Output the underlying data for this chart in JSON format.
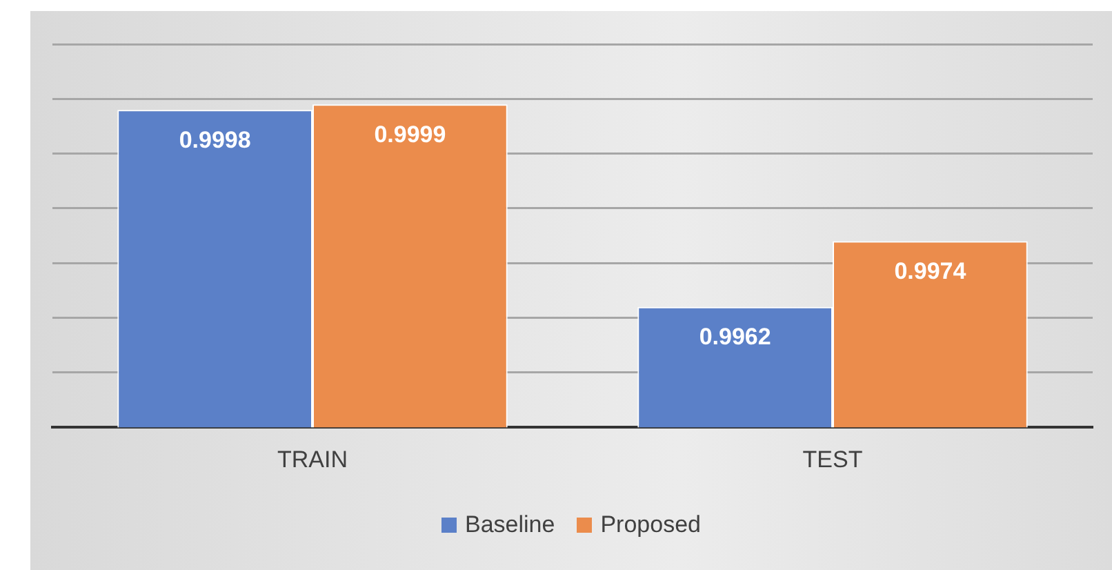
{
  "chart_data": {
    "type": "bar",
    "categories": [
      "TRAIN",
      "TEST"
    ],
    "series": [
      {
        "name": "Baseline",
        "color": "#5b80c8",
        "values": [
          0.9998,
          0.9962
        ]
      },
      {
        "name": "Proposed",
        "color": "#eb8c4c",
        "values": [
          0.9999,
          0.9974
        ]
      }
    ],
    "ylim": [
      0.994,
      1.001
    ],
    "yticks": [
      {
        "value": 0.994,
        "label": null
      },
      {
        "value": 0.995,
        "label": null
      },
      {
        "value": 0.996,
        "label": null
      },
      {
        "value": 0.997,
        "label": null
      },
      {
        "value": 0.998,
        "label": null
      },
      {
        "value": 0.999,
        "label": null
      },
      {
        "value": 1.0,
        "label": null
      },
      {
        "value": 1.001,
        "label": null
      }
    ],
    "tick_labels": "x",
    "grid": "y",
    "legend": "bottom",
    "data_labels": true
  }
}
